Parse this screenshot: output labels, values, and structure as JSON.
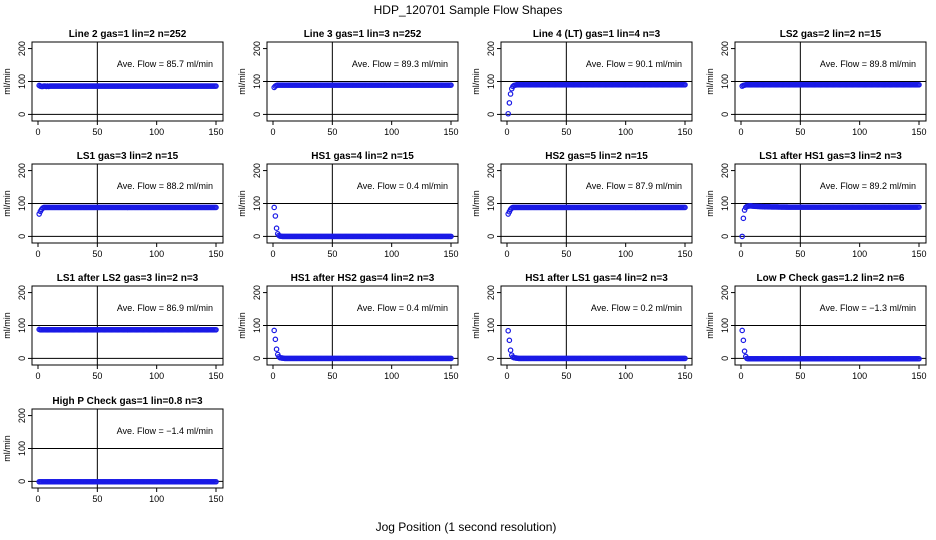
{
  "figure": {
    "title": "HDP_120701  Sample Flow Shapes",
    "xlabel": "Jog Position (1 second resolution)"
  },
  "chart_data": [
    {
      "type": "scatter",
      "title": "Line 2 gas=1 lin=2 n=252",
      "ylabel": "ml/min",
      "annotation": "Ave. Flow = 85.7  ml/min",
      "xlim": [
        0,
        150
      ],
      "ylim": [
        -20,
        220
      ],
      "xticks": [
        0,
        50,
        100,
        150
      ],
      "yticks": [
        0,
        100,
        200
      ],
      "ref_x": 50,
      "ref_y": [
        0,
        100
      ],
      "color": "#1a1ae6",
      "x": [
        1,
        2,
        3,
        4,
        5,
        6,
        7,
        8,
        9,
        10,
        20,
        40,
        60,
        80,
        100,
        120,
        140,
        150
      ],
      "y": [
        88,
        86,
        85,
        85,
        86,
        86,
        85,
        86,
        85,
        86,
        86,
        86,
        86,
        86,
        86,
        86,
        86,
        86
      ]
    },
    {
      "type": "scatter",
      "title": "Line 3 gas=1 lin=3 n=252",
      "ylabel": "ml/min",
      "annotation": "Ave. Flow = 89.3  ml/min",
      "xlim": [
        0,
        150
      ],
      "ylim": [
        -20,
        220
      ],
      "xticks": [
        0,
        50,
        100,
        150
      ],
      "yticks": [
        0,
        100,
        200
      ],
      "ref_x": 50,
      "ref_y": [
        0,
        100
      ],
      "color": "#1a1ae6",
      "x": [
        1,
        2,
        3,
        4,
        5,
        6,
        8,
        10,
        20,
        40,
        60,
        80,
        100,
        120,
        140,
        150
      ],
      "y": [
        82,
        86,
        88,
        89,
        89,
        89,
        89,
        89,
        89,
        89,
        89,
        89,
        89,
        89,
        89,
        89
      ]
    },
    {
      "type": "scatter",
      "title": "Line 4 (LT) gas=1 lin=4 n=3",
      "ylabel": "ml/min",
      "annotation": "Ave. Flow = 90.1  ml/min",
      "xlim": [
        0,
        150
      ],
      "ylim": [
        -20,
        220
      ],
      "xticks": [
        0,
        50,
        100,
        150
      ],
      "yticks": [
        0,
        100,
        200
      ],
      "ref_x": 50,
      "ref_y": [
        0,
        100
      ],
      "color": "#1a1ae6",
      "x": [
        1,
        2,
        3,
        4,
        5,
        6,
        8,
        10,
        20,
        40,
        60,
        80,
        100,
        120,
        140,
        150
      ],
      "y": [
        2,
        35,
        62,
        78,
        85,
        88,
        90,
        90,
        90,
        90,
        90,
        90,
        90,
        90,
        90,
        90
      ]
    },
    {
      "type": "scatter",
      "title": "LS2 gas=2 lin=2 n=15",
      "ylabel": "ml/min",
      "annotation": "Ave. Flow = 89.8  ml/min",
      "xlim": [
        0,
        150
      ],
      "ylim": [
        -20,
        220
      ],
      "xticks": [
        0,
        50,
        100,
        150
      ],
      "yticks": [
        0,
        100,
        200
      ],
      "ref_x": 50,
      "ref_y": [
        0,
        100
      ],
      "color": "#1a1ae6",
      "x": [
        1,
        2,
        3,
        4,
        6,
        8,
        10,
        20,
        40,
        60,
        80,
        100,
        120,
        140,
        150
      ],
      "y": [
        86,
        88,
        89,
        90,
        90,
        90,
        90,
        90,
        90,
        90,
        90,
        90,
        90,
        90,
        90
      ]
    },
    {
      "type": "scatter",
      "title": "LS1 gas=3 lin=2 n=15",
      "ylabel": "ml/min",
      "annotation": "Ave. Flow = 88.2  ml/min",
      "xlim": [
        0,
        150
      ],
      "ylim": [
        -20,
        220
      ],
      "xticks": [
        0,
        50,
        100,
        150
      ],
      "yticks": [
        0,
        100,
        200
      ],
      "ref_x": 50,
      "ref_y": [
        0,
        100
      ],
      "color": "#1a1ae6",
      "x": [
        1,
        2,
        3,
        4,
        5,
        6,
        8,
        10,
        20,
        40,
        60,
        80,
        100,
        120,
        140,
        150
      ],
      "y": [
        68,
        76,
        82,
        86,
        88,
        88,
        88,
        88,
        88,
        88,
        88,
        88,
        88,
        88,
        88,
        88
      ]
    },
    {
      "type": "scatter",
      "title": "HS1 gas=4 lin=2 n=15",
      "ylabel": "ml/min",
      "annotation": "Ave. Flow = 0.4  ml/min",
      "xlim": [
        0,
        150
      ],
      "ylim": [
        -20,
        220
      ],
      "xticks": [
        0,
        50,
        100,
        150
      ],
      "yticks": [
        0,
        100,
        200
      ],
      "ref_x": 50,
      "ref_y": [
        0,
        100
      ],
      "color": "#1a1ae6",
      "x": [
        1,
        2,
        3,
        4,
        5,
        6,
        8,
        10,
        20,
        40,
        60,
        80,
        100,
        120,
        140,
        150
      ],
      "y": [
        88,
        62,
        25,
        8,
        3,
        1,
        0,
        0,
        0,
        0,
        0,
        0,
        0,
        0,
        0,
        0
      ]
    },
    {
      "type": "scatter",
      "title": "HS2 gas=5 lin=2 n=15",
      "ylabel": "ml/min",
      "annotation": "Ave. Flow = 87.9  ml/min",
      "xlim": [
        0,
        150
      ],
      "ylim": [
        -20,
        220
      ],
      "xticks": [
        0,
        50,
        100,
        150
      ],
      "yticks": [
        0,
        100,
        200
      ],
      "ref_x": 50,
      "ref_y": [
        0,
        100
      ],
      "color": "#1a1ae6",
      "x": [
        1,
        2,
        3,
        4,
        5,
        6,
        8,
        10,
        20,
        40,
        60,
        80,
        100,
        120,
        140,
        150
      ],
      "y": [
        68,
        75,
        82,
        86,
        88,
        88,
        88,
        88,
        88,
        88,
        88,
        88,
        88,
        88,
        88,
        88
      ]
    },
    {
      "type": "scatter",
      "title": "LS1 after HS1 gas=3 lin=2 n=3",
      "ylabel": "ml/min",
      "annotation": "Ave. Flow = 89.2  ml/min",
      "xlim": [
        0,
        150
      ],
      "ylim": [
        -20,
        220
      ],
      "xticks": [
        0,
        50,
        100,
        150
      ],
      "yticks": [
        0,
        100,
        200
      ],
      "ref_x": 50,
      "ref_y": [
        0,
        100
      ],
      "color": "#1a1ae6",
      "x": [
        1,
        2,
        3,
        4,
        5,
        6,
        8,
        10,
        20,
        40,
        60,
        80,
        100,
        120,
        140,
        150
      ],
      "y": [
        0,
        55,
        80,
        88,
        91,
        92,
        93,
        92,
        90,
        89,
        89,
        89,
        89,
        89,
        89,
        89
      ]
    },
    {
      "type": "scatter",
      "title": "LS1 after LS2 gas=3 lin=2 n=3",
      "ylabel": "ml/min",
      "annotation": "Ave. Flow = 86.9  ml/min",
      "xlim": [
        0,
        150
      ],
      "ylim": [
        -20,
        220
      ],
      "xticks": [
        0,
        50,
        100,
        150
      ],
      "yticks": [
        0,
        100,
        200
      ],
      "ref_x": 50,
      "ref_y": [
        0,
        100
      ],
      "color": "#1a1ae6",
      "x": [
        1,
        2,
        3,
        4,
        6,
        8,
        10,
        20,
        40,
        60,
        80,
        100,
        120,
        140,
        150
      ],
      "y": [
        88,
        87,
        87,
        87,
        87,
        87,
        87,
        87,
        87,
        87,
        87,
        87,
        87,
        87,
        87
      ]
    },
    {
      "type": "scatter",
      "title": "HS1 after HS2 gas=4 lin=2 n=3",
      "ylabel": "ml/min",
      "annotation": "Ave. Flow = 0.4  ml/min",
      "xlim": [
        0,
        150
      ],
      "ylim": [
        -20,
        220
      ],
      "xticks": [
        0,
        50,
        100,
        150
      ],
      "yticks": [
        0,
        100,
        200
      ],
      "ref_x": 50,
      "ref_y": [
        0,
        100
      ],
      "color": "#1a1ae6",
      "x": [
        1,
        2,
        3,
        4,
        5,
        6,
        8,
        10,
        20,
        40,
        60,
        80,
        100,
        120,
        140,
        150
      ],
      "y": [
        85,
        58,
        28,
        12,
        5,
        2,
        1,
        0,
        0,
        0,
        0,
        0,
        0,
        0,
        0,
        0
      ]
    },
    {
      "type": "scatter",
      "title": "HS1 after LS1 gas=4 lin=2 n=3",
      "ylabel": "ml/min",
      "annotation": "Ave. Flow = 0.2  ml/min",
      "xlim": [
        0,
        150
      ],
      "ylim": [
        -20,
        220
      ],
      "xticks": [
        0,
        50,
        100,
        150
      ],
      "yticks": [
        0,
        100,
        200
      ],
      "ref_x": 50,
      "ref_y": [
        0,
        100
      ],
      "color": "#1a1ae6",
      "x": [
        1,
        2,
        3,
        4,
        5,
        6,
        8,
        10,
        20,
        40,
        60,
        80,
        100,
        120,
        140,
        150
      ],
      "y": [
        84,
        55,
        25,
        10,
        4,
        2,
        1,
        0,
        0,
        0,
        0,
        0,
        0,
        0,
        0,
        0
      ]
    },
    {
      "type": "scatter",
      "title": "Low P Check gas=1.2 lin=2 n=6",
      "ylabel": "ml/min",
      "annotation": "Ave. Flow = −1.3  ml/min",
      "xlim": [
        0,
        150
      ],
      "ylim": [
        -20,
        220
      ],
      "xticks": [
        0,
        50,
        100,
        150
      ],
      "yticks": [
        0,
        100,
        200
      ],
      "ref_x": 50,
      "ref_y": [
        0,
        100
      ],
      "color": "#1a1ae6",
      "x": [
        1,
        2,
        3,
        4,
        5,
        6,
        8,
        10,
        20,
        40,
        60,
        80,
        100,
        120,
        140,
        150
      ],
      "y": [
        85,
        55,
        22,
        6,
        0,
        -1,
        -1,
        -1,
        -1,
        -1,
        -1,
        -1,
        -1,
        -1,
        -1,
        -1
      ]
    },
    {
      "type": "scatter",
      "title": "High P Check gas=1 lin=0.8 n=3",
      "ylabel": "ml/min",
      "annotation": "Ave. Flow = −1.4  ml/min",
      "xlim": [
        0,
        150
      ],
      "ylim": [
        -20,
        220
      ],
      "xticks": [
        0,
        50,
        100,
        150
      ],
      "yticks": [
        0,
        100,
        200
      ],
      "ref_x": 50,
      "ref_y": [
        0,
        100
      ],
      "color": "#1a1ae6",
      "x": [
        1,
        2,
        3,
        4,
        6,
        8,
        10,
        20,
        40,
        60,
        80,
        100,
        120,
        140,
        150
      ],
      "y": [
        -1,
        -1,
        -1,
        -1,
        -1,
        -1,
        -1,
        -1,
        -1,
        -1,
        -1,
        -1,
        -1,
        -1,
        -1
      ]
    }
  ]
}
